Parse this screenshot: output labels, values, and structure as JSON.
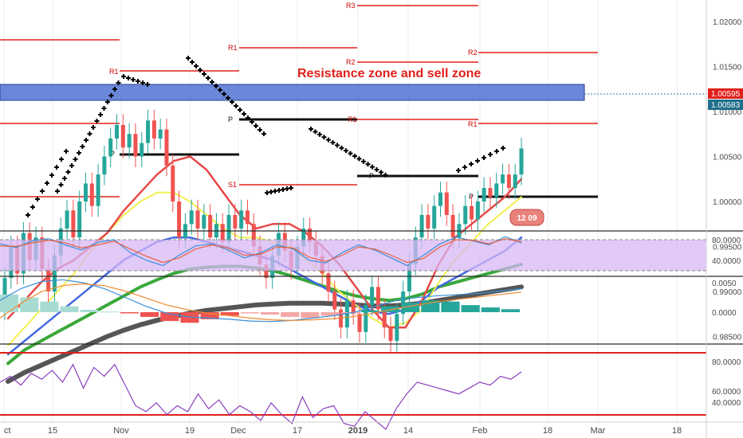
{
  "chart_data": {
    "type": "candlestick",
    "annotation": "Resistance zone and sell zone",
    "price_axis": {
      "ticks": [
        "1.02000",
        "1.01500",
        "1.01000",
        "1.00500",
        "1.00000",
        "0.99500",
        "0.99000",
        "0.98500"
      ],
      "last_price": "1.00595",
      "second_price": "1.00583"
    },
    "stoch_axis": {
      "ticks": [
        "80.0000",
        "40.0000"
      ]
    },
    "macd_axis": {
      "ticks": [
        "0.0050",
        "0.0000"
      ]
    },
    "rsi_axis": {
      "ticks": [
        "80.0000",
        "60.0000",
        "40.0000"
      ]
    },
    "x_ticks": [
      "ct",
      "15",
      "Nov",
      "19",
      "Dec",
      "17",
      "2019",
      "14",
      "Feb",
      "18",
      "Mar",
      "18"
    ],
    "pivot_labels": [
      "R3",
      "R2",
      "R1",
      "R2",
      "R1",
      "R1",
      "R1",
      "P",
      "P",
      "P",
      "P",
      "S1"
    ],
    "badge": "12 09",
    "colors": {
      "up_candle": "#26a69a",
      "down_candle": "#ef5350",
      "resistance_zone": "#3a5fcd",
      "pivot_red": "#e0201b",
      "ema_fast": "#e84848",
      "ema_mid": "#f2f050",
      "ema_slow1": "#4169e1",
      "ema_slow2": "#3aa83a",
      "ema_slow3": "#555555"
    },
    "candles": [
      [
        0.988,
        0.9915
      ],
      [
        0.9915,
        0.995
      ],
      [
        0.995,
        0.992
      ],
      [
        0.992,
        0.9965
      ],
      [
        0.9965,
        0.9935
      ],
      [
        0.9935,
        0.996
      ],
      [
        0.996,
        0.9925
      ],
      [
        0.9925,
        0.99
      ],
      [
        0.99,
        0.994
      ],
      [
        0.994,
        0.997
      ],
      [
        0.997,
        0.999
      ],
      [
        0.999,
        0.996
      ],
      [
        0.996,
        1.0
      ],
      [
        1.0,
        1.002
      ],
      [
        1.002,
        0.9995
      ],
      [
        0.9995,
        1.003
      ],
      [
        1.003,
        1.005
      ],
      [
        1.005,
        1.007
      ],
      [
        1.007,
        1.0085
      ],
      [
        1.0085,
        1.006
      ],
      [
        1.006,
        1.0075
      ],
      [
        1.0075,
        1.005
      ],
      [
        1.005,
        1.0065
      ],
      [
        1.0065,
        1.009
      ],
      [
        1.009,
        1.007
      ],
      [
        1.007,
        1.008
      ],
      [
        1.008,
        1.004
      ],
      [
        1.004,
        1.0
      ],
      [
        1.0,
        0.996
      ],
      [
        0.996,
        0.9975
      ],
      [
        0.9975,
        0.999
      ],
      [
        0.999,
        0.997
      ],
      [
        0.997,
        0.9985
      ],
      [
        0.9985,
        0.996
      ],
      [
        0.996,
        0.9975
      ],
      [
        0.9975,
        0.9955
      ],
      [
        0.9955,
        0.9985
      ],
      [
        0.9985,
        0.997
      ],
      [
        0.997,
        0.999
      ],
      [
        0.999,
        0.9975
      ],
      [
        0.9975,
        0.995
      ],
      [
        0.995,
        0.993
      ],
      [
        0.993,
        0.9915
      ],
      [
        0.9915,
        0.994
      ],
      [
        0.994,
        0.9965
      ],
      [
        0.9965,
        0.9945
      ],
      [
        0.9945,
        0.9925
      ],
      [
        0.9925,
        0.995
      ],
      [
        0.995,
        0.997
      ],
      [
        0.997,
        0.9955
      ],
      [
        0.9955,
        0.994
      ],
      [
        0.994,
        0.992
      ],
      [
        0.992,
        0.99
      ],
      [
        0.99,
        0.988
      ],
      [
        0.988,
        0.986
      ],
      [
        0.986,
        0.989
      ],
      [
        0.989,
        0.9875
      ],
      [
        0.9875,
        0.9855
      ],
      [
        0.9855,
        0.9885
      ],
      [
        0.9885,
        0.9905
      ],
      [
        0.9905,
        0.988
      ],
      [
        0.988,
        0.986
      ],
      [
        0.986,
        0.9845
      ],
      [
        0.9845,
        0.9875
      ],
      [
        0.9875,
        0.99
      ],
      [
        0.99,
        0.993
      ],
      [
        0.993,
        0.996
      ],
      [
        0.996,
        0.9985
      ],
      [
        0.9985,
        0.997
      ],
      [
        0.997,
        0.9995
      ],
      [
        0.9995,
        1.001
      ],
      [
        1.001,
        0.9985
      ],
      [
        0.9985,
        0.996
      ],
      [
        0.996,
        0.9975
      ],
      [
        0.9975,
        0.9995
      ],
      [
        0.9995,
        0.998
      ],
      [
        0.998,
        1.0
      ],
      [
        1.0,
        1.0015
      ],
      [
        1.0015,
        1.0005
      ],
      [
        1.0005,
        1.002
      ],
      [
        1.002,
        1.003
      ],
      [
        1.003,
        1.0015
      ],
      [
        1.0015,
        1.003
      ],
      [
        1.003,
        1.0059
      ]
    ],
    "ema_fast": [
      0.987,
      0.989,
      0.991,
      0.9925,
      0.9935,
      0.995,
      0.9965,
      0.999,
      1.001,
      1.003,
      1.0045,
      1.005,
      1.0035,
      1.001,
      0.9985,
      0.997,
      0.9975,
      0.9975,
      0.9965,
      0.995,
      0.993,
      0.9905,
      0.988,
      0.986,
      0.986,
      0.989,
      0.993,
      0.996,
      0.9975,
      0.999,
      1.0005,
      1.0025
    ],
    "ema_mid": [
      0.984,
      0.986,
      0.988,
      0.99,
      0.992,
      0.9945,
      0.9965,
      0.9985,
      1.0,
      1.001,
      1.001,
      1.0,
      0.9985,
      0.997,
      0.996,
      0.996,
      0.9955,
      0.995,
      0.9935,
      0.992,
      0.99,
      0.9885,
      0.987,
      0.986,
      0.9865,
      0.988,
      0.991,
      0.9935,
      0.9955,
      0.9975,
      0.999,
      1.0005
    ],
    "ema_slow1": [
      0.983,
      0.9845,
      0.986,
      0.9875,
      0.989,
      0.9905,
      0.992,
      0.9935,
      0.9945,
      0.9955,
      0.996,
      0.996,
      0.9955,
      0.995,
      0.9945,
      0.994,
      0.9935,
      0.9925,
      0.9915,
      0.9905,
      0.9895,
      0.9885,
      0.9878,
      0.9875,
      0.988,
      0.989,
      0.9905,
      0.9915,
      0.9925,
      0.9935,
      0.9945,
      0.996
    ],
    "ema_slow2": [
      0.982,
      0.9835,
      0.9845,
      0.9855,
      0.9865,
      0.9875,
      0.9885,
      0.9895,
      0.9905,
      0.9913,
      0.992,
      0.9925,
      0.9927,
      0.9928,
      0.9928,
      0.9926,
      0.9923,
      0.9918,
      0.9912,
      0.9906,
      0.99,
      0.9895,
      0.9892,
      0.989,
      0.9892,
      0.9897,
      0.9905,
      0.991,
      0.9915,
      0.992,
      0.9925,
      0.993
    ],
    "ema_slow3": [
      0.98,
      0.981,
      0.9818,
      0.9826,
      0.9834,
      0.9842,
      0.985,
      0.9857,
      0.9863,
      0.9868,
      0.9872,
      0.9876,
      0.9879,
      0.9881,
      0.9883,
      0.9885,
      0.9886,
      0.9887,
      0.9887,
      0.9887,
      0.9886,
      0.9885,
      0.9884,
      0.9884,
      0.9885,
      0.9887,
      0.989,
      0.9893,
      0.9896,
      0.9899,
      0.9902,
      0.9905
    ],
    "stoch_k": [
      72,
      65,
      78,
      82,
      70,
      60,
      75,
      80,
      55,
      40,
      30,
      50,
      68,
      72,
      60,
      45,
      55,
      70,
      62,
      40,
      35,
      55,
      70,
      60,
      45,
      30,
      50,
      72,
      85,
      78,
      70,
      86,
      74
    ],
    "stoch_d": [
      68,
      67,
      74,
      79,
      74,
      64,
      70,
      77,
      62,
      48,
      36,
      45,
      62,
      70,
      64,
      50,
      52,
      66,
      64,
      46,
      38,
      50,
      66,
      62,
      50,
      36,
      44,
      66,
      80,
      79,
      72,
      82,
      76
    ],
    "macd_hist": [
      0.003,
      0.0025,
      0.0018,
      0.001,
      0.0004,
      0.0001,
      -0.0002,
      -0.0008,
      -0.0015,
      -0.0018,
      -0.0012,
      -0.0006,
      -0.0002,
      -0.0004,
      -0.0008,
      -0.001,
      -0.0006,
      -0.0002,
      0.0003,
      0.001,
      0.0016,
      0.002,
      0.0018,
      0.0012,
      0.0008,
      0.0005
    ],
    "macd_line": [
      0.002,
      0.004,
      0.0052,
      0.0055,
      0.005,
      0.004,
      0.0025,
      0.001,
      -0.0002,
      -0.0008,
      -0.001,
      -0.0012,
      -0.0015,
      -0.0016,
      -0.0014,
      -0.001,
      -0.0006,
      0.0,
      0.001,
      0.002,
      0.0025,
      0.0028,
      0.003,
      0.0032,
      0.0036,
      0.004
    ],
    "macd_signal": [
      -0.001,
      0.0015,
      0.0035,
      0.0045,
      0.0048,
      0.0045,
      0.0036,
      0.0024,
      0.0012,
      0.0004,
      -0.0002,
      -0.0006,
      -0.001,
      -0.0013,
      -0.0014,
      -0.0013,
      -0.0011,
      -0.0007,
      -0.0001,
      0.0006,
      0.0012,
      0.0018,
      0.0022,
      0.0026,
      0.003,
      0.0034
    ],
    "rsi": [
      66,
      70,
      64,
      72,
      68,
      74,
      66,
      78,
      62,
      76,
      70,
      78,
      64,
      50,
      46,
      52,
      44,
      50,
      46,
      58,
      48,
      54,
      44,
      50,
      46,
      40,
      52,
      44,
      38,
      56,
      42,
      48,
      50,
      38,
      36,
      46,
      40,
      34,
      48,
      58,
      66,
      64,
      62,
      60,
      58,
      62,
      66,
      64,
      70,
      68,
      73
    ]
  }
}
